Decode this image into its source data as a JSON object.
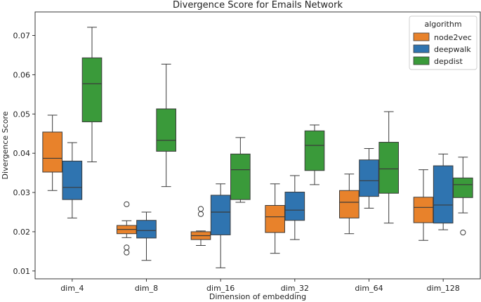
{
  "chart_data": {
    "type": "box",
    "title": "Divergence Score for Emails Network",
    "xlabel": "Dimension of embedding",
    "ylabel": "Divergence Score",
    "ylim": [
      0.008,
      0.076
    ],
    "yticks": [
      0.01,
      0.02,
      0.03,
      0.04,
      0.05,
      0.06,
      0.07
    ],
    "ytick_labels": [
      "0.01",
      "0.02",
      "0.03",
      "0.04",
      "0.05",
      "0.06",
      "0.07"
    ],
    "categories": [
      "dim_4",
      "dim_8",
      "dim_16",
      "dim_32",
      "dim_64",
      "dim_128"
    ],
    "legend": {
      "title": "algorithm",
      "position": "top-right"
    },
    "series": [
      {
        "name": "node2vec",
        "color": "#E8822B",
        "boxes": [
          {
            "whislo": 0.0305,
            "q1": 0.0352,
            "med": 0.0387,
            "q3": 0.0454,
            "whishi": 0.0497,
            "fliers": []
          },
          {
            "whislo": 0.0185,
            "q1": 0.0195,
            "med": 0.0206,
            "q3": 0.0216,
            "whishi": 0.0228,
            "fliers": [
              0.027,
              0.016,
              0.0147
            ]
          },
          {
            "whislo": 0.0165,
            "q1": 0.018,
            "med": 0.019,
            "q3": 0.02,
            "whishi": 0.0202,
            "fliers": [
              0.0258,
              0.0245
            ]
          },
          {
            "whislo": 0.0145,
            "q1": 0.0198,
            "med": 0.0238,
            "q3": 0.0267,
            "whishi": 0.0322,
            "fliers": []
          },
          {
            "whislo": 0.0195,
            "q1": 0.0235,
            "med": 0.0275,
            "q3": 0.0305,
            "whishi": 0.0347,
            "fliers": []
          },
          {
            "whislo": 0.0178,
            "q1": 0.0223,
            "med": 0.0262,
            "q3": 0.0288,
            "whishi": 0.0358,
            "fliers": []
          }
        ]
      },
      {
        "name": "deepwalk",
        "color": "#2F74B0",
        "boxes": [
          {
            "whislo": 0.0235,
            "q1": 0.0282,
            "med": 0.0313,
            "q3": 0.038,
            "whishi": 0.0427,
            "fliers": []
          },
          {
            "whislo": 0.0127,
            "q1": 0.0184,
            "med": 0.0203,
            "q3": 0.0229,
            "whishi": 0.025,
            "fliers": []
          },
          {
            "whislo": 0.0108,
            "q1": 0.0192,
            "med": 0.025,
            "q3": 0.0293,
            "whishi": 0.0322,
            "fliers": []
          },
          {
            "whislo": 0.018,
            "q1": 0.0229,
            "med": 0.0255,
            "q3": 0.0301,
            "whishi": 0.0343,
            "fliers": []
          },
          {
            "whislo": 0.026,
            "q1": 0.029,
            "med": 0.033,
            "q3": 0.0383,
            "whishi": 0.0412,
            "fliers": []
          },
          {
            "whislo": 0.0205,
            "q1": 0.0222,
            "med": 0.0268,
            "q3": 0.0368,
            "whishi": 0.0398,
            "fliers": []
          }
        ]
      },
      {
        "name": "depdist",
        "color": "#3A9A3A",
        "boxes": [
          {
            "whislo": 0.0378,
            "q1": 0.048,
            "med": 0.0577,
            "q3": 0.0643,
            "whishi": 0.0721,
            "fliers": []
          },
          {
            "whislo": 0.0315,
            "q1": 0.0405,
            "med": 0.0433,
            "q3": 0.0513,
            "whishi": 0.0627,
            "fliers": []
          },
          {
            "whislo": 0.0275,
            "q1": 0.0282,
            "med": 0.0358,
            "q3": 0.0398,
            "whishi": 0.044,
            "fliers": []
          },
          {
            "whislo": 0.032,
            "q1": 0.0356,
            "med": 0.042,
            "q3": 0.0457,
            "whishi": 0.0472,
            "fliers": []
          },
          {
            "whislo": 0.0222,
            "q1": 0.0298,
            "med": 0.036,
            "q3": 0.0428,
            "whishi": 0.0506,
            "fliers": []
          },
          {
            "whislo": 0.0248,
            "q1": 0.0287,
            "med": 0.032,
            "q3": 0.0337,
            "whishi": 0.039,
            "fliers": [
              0.0198
            ]
          }
        ]
      }
    ]
  }
}
